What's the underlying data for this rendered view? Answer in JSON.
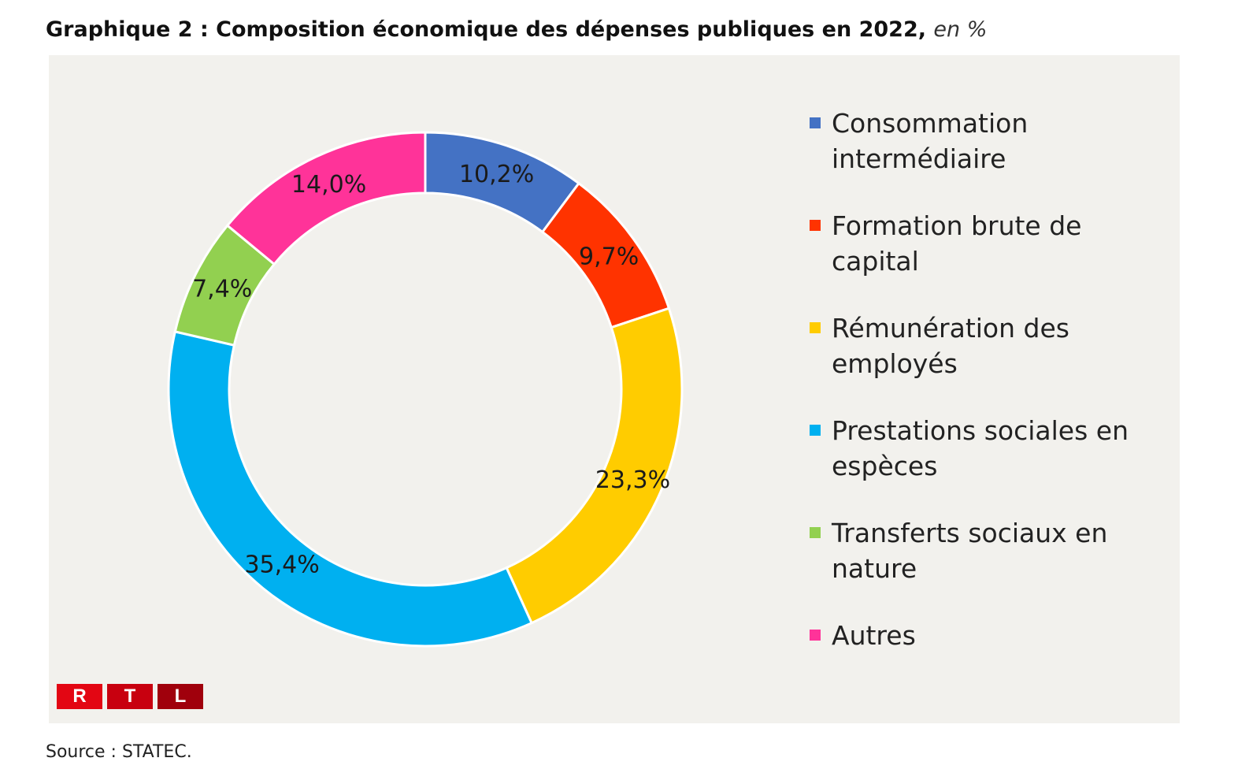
{
  "chart_data": {
    "type": "pie",
    "variant": "donut",
    "title": "Graphique 2 : Composition économique des dépenses publiques en 2022,",
    "title_unit": "en %",
    "categories": [
      "Consommation intermédiaire",
      "Formation brute de capital",
      "Rémunération des employés",
      "Prestations sociales en espèces",
      "Transferts sociaux en nature",
      "Autres"
    ],
    "legend_lines": [
      [
        "Consommation",
        "intermédiaire"
      ],
      [
        "Formation brute de",
        "capital"
      ],
      [
        "Rémunération des",
        "employés"
      ],
      [
        "Prestations sociales en",
        "espèces"
      ],
      [
        "Transferts sociaux en",
        "nature"
      ],
      [
        "Autres"
      ]
    ],
    "values": [
      10.2,
      9.7,
      23.3,
      35.4,
      7.4,
      14.0
    ],
    "labels": [
      "10,2%",
      "9,7%",
      "23,3%",
      "35,4%",
      "7,4%",
      "14,0%"
    ],
    "colors": [
      "#4472C4",
      "#FF3300",
      "#FFCC00",
      "#00B0F0",
      "#92D050",
      "#FF3399"
    ],
    "legend_position": "right"
  },
  "logo": {
    "letters": [
      "R",
      "T",
      "L"
    ],
    "colors": [
      "#e30613",
      "#c8000f",
      "#a0000c"
    ]
  },
  "source": "Source : STATEC."
}
